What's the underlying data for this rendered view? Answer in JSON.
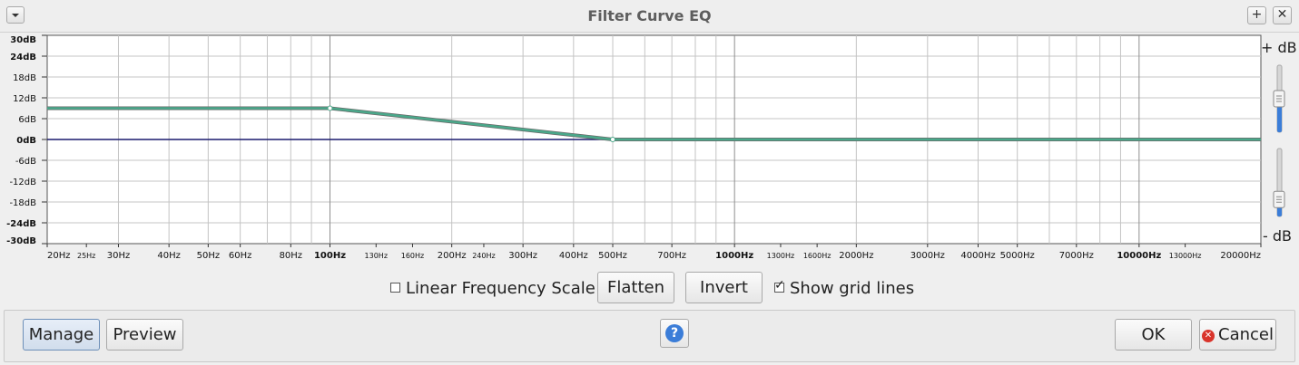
{
  "window": {
    "title": "Filter Curve EQ",
    "menu_icon": "chevron-down-icon",
    "maximize_symbol": "+",
    "close_symbol": "✕"
  },
  "chart_data": {
    "type": "line",
    "db_ticks": [
      {
        "value": 30,
        "label": "30dB",
        "bold": true
      },
      {
        "value": 24,
        "label": "24dB",
        "bold": true
      },
      {
        "value": 18,
        "label": "18dB",
        "bold": false
      },
      {
        "value": 12,
        "label": "12dB",
        "bold": false
      },
      {
        "value": 6,
        "label": "6dB",
        "bold": false
      },
      {
        "value": 0,
        "label": "0dB",
        "bold": true
      },
      {
        "value": -6,
        "label": "-6dB",
        "bold": false
      },
      {
        "value": -12,
        "label": "-12dB",
        "bold": false
      },
      {
        "value": -18,
        "label": "-18dB",
        "bold": false
      },
      {
        "value": -24,
        "label": "-24dB",
        "bold": true
      },
      {
        "value": -30,
        "label": "-30dB",
        "bold": true
      }
    ],
    "ylim": [
      -30,
      30
    ],
    "xlim": [
      20,
      20000
    ],
    "x_scale": "log",
    "freq_ticks": [
      {
        "value": 20,
        "label": "20Hz",
        "size": "n"
      },
      {
        "value": 25,
        "label": "25Hz",
        "size": "s"
      },
      {
        "value": 30,
        "label": "30Hz",
        "size": "n"
      },
      {
        "value": 40,
        "label": "40Hz",
        "size": "n"
      },
      {
        "value": 50,
        "label": "50Hz",
        "size": "n"
      },
      {
        "value": 60,
        "label": "60Hz",
        "size": "n"
      },
      {
        "value": 80,
        "label": "80Hz",
        "size": "n"
      },
      {
        "value": 100,
        "label": "100Hz",
        "size": "b"
      },
      {
        "value": 130,
        "label": "130Hz",
        "size": "s"
      },
      {
        "value": 160,
        "label": "160Hz",
        "size": "s"
      },
      {
        "value": 200,
        "label": "200Hz",
        "size": "n"
      },
      {
        "value": 240,
        "label": "240Hz",
        "size": "s"
      },
      {
        "value": 300,
        "label": "300Hz",
        "size": "n"
      },
      {
        "value": 400,
        "label": "400Hz",
        "size": "n"
      },
      {
        "value": 500,
        "label": "500Hz",
        "size": "n"
      },
      {
        "value": 700,
        "label": "700Hz",
        "size": "n"
      },
      {
        "value": 1000,
        "label": "1000Hz",
        "size": "b"
      },
      {
        "value": 1300,
        "label": "1300Hz",
        "size": "s"
      },
      {
        "value": 1600,
        "label": "1600Hz",
        "size": "s"
      },
      {
        "value": 2000,
        "label": "2000Hz",
        "size": "n"
      },
      {
        "value": 3000,
        "label": "3000Hz",
        "size": "n"
      },
      {
        "value": 4000,
        "label": "4000Hz",
        "size": "n"
      },
      {
        "value": 5000,
        "label": "5000Hz",
        "size": "n"
      },
      {
        "value": 7000,
        "label": "7000Hz",
        "size": "n"
      },
      {
        "value": 10000,
        "label": "10000Hz",
        "size": "b"
      },
      {
        "value": 13000,
        "label": "13000Hz",
        "size": "s"
      },
      {
        "value": 20000,
        "label": "20000Hz",
        "size": "n"
      }
    ],
    "series": [
      {
        "color": "#4aa88a",
        "points": [
          [
            20,
            9
          ],
          [
            100,
            9
          ],
          [
            500,
            0
          ],
          [
            20000,
            0
          ]
        ]
      }
    ],
    "control_points": [
      [
        100,
        9
      ],
      [
        500,
        0
      ]
    ],
    "zero_line_color": "#1a1a6e",
    "grid": true
  },
  "sliders": {
    "plus_label": "+ dB",
    "minus_label": "- dB",
    "top_level": 0.5,
    "bottom_level": 0.25
  },
  "controls": {
    "linear_scale_label": "Linear Frequency Scale",
    "linear_scale_checked": false,
    "flatten_label": "Flatten",
    "invert_label": "Invert",
    "grid_lines_label": "Show grid lines",
    "grid_lines_checked": true
  },
  "buttons": {
    "manage": "Manage",
    "preview": "Preview",
    "help_symbol": "?",
    "ok": "OK",
    "cancel": "Cancel"
  }
}
